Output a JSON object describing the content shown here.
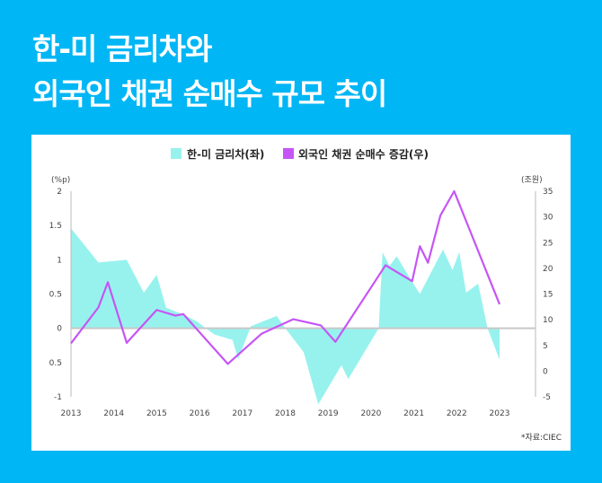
{
  "title": {
    "line1": "한-미 금리차와",
    "line2": "외국인 채권 순매수 규모 추이"
  },
  "source": "*자료:CIEC",
  "colors": {
    "background": "#00b6f5",
    "area": "#97f2ee",
    "line": "#c655f5",
    "zero_line": "#c8c8c8"
  },
  "chart_data": {
    "type": "area+line",
    "legend_position": "top-center",
    "grid": false,
    "xlim": [
      2013,
      2023
    ],
    "x_ticks": [
      "2013",
      "2014",
      "2015",
      "2016",
      "2017",
      "2018",
      "2019",
      "2020",
      "2021",
      "2022",
      "2023"
    ],
    "left_axis": {
      "unit": "(%p)",
      "ylim": [
        -1,
        2
      ],
      "ticks": [
        "2",
        "1.5",
        "1",
        "0.5",
        "0",
        "0.5",
        "-1"
      ],
      "tick_values": [
        2,
        1.5,
        1,
        0.5,
        0,
        -0.5,
        -1
      ]
    },
    "right_axis": {
      "unit": "(조원)",
      "ylim": [
        -5,
        35
      ],
      "ticks": [
        "35",
        "30",
        "25",
        "20",
        "15",
        "10",
        "5",
        "0",
        "-5"
      ],
      "tick_values": [
        35,
        30,
        25,
        20,
        15,
        10,
        5,
        0,
        -5
      ]
    },
    "series": [
      {
        "name": "한-미 금리차(좌)",
        "type": "area",
        "axis": "left",
        "x": [
          2013,
          2013.64,
          2014.3,
          2014.7,
          2015.0,
          2015.22,
          2015.62,
          2015.94,
          2016.34,
          2016.77,
          2016.9,
          2017.2,
          2017.8,
          2018.0,
          2018.43,
          2018.77,
          2019.31,
          2019.47,
          2020.18,
          2020.27,
          2020.43,
          2020.6,
          2020.9,
          2021.14,
          2021.68,
          2021.9,
          2022.06,
          2022.22,
          2022.5,
          2022.72,
          2023.0
        ],
        "y": [
          1.46,
          0.96,
          1.0,
          0.52,
          0.78,
          0.3,
          0.2,
          0.1,
          -0.09,
          -0.17,
          -0.45,
          0.03,
          0.18,
          0.0,
          -0.35,
          -1.11,
          -0.54,
          -0.74,
          0.0,
          1.11,
          0.91,
          1.05,
          0.74,
          0.5,
          1.15,
          0.85,
          1.11,
          0.52,
          0.65,
          0.0,
          -0.46
        ]
      },
      {
        "name": "외국인 채권 순매수 증감(우)",
        "type": "line",
        "axis": "right",
        "x": [
          2013,
          2013.64,
          2013.86,
          2014.3,
          2015.0,
          2015.44,
          2015.62,
          2016.66,
          2017.45,
          2018.19,
          2018.83,
          2019.17,
          2020.34,
          2020.96,
          2021.14,
          2021.33,
          2021.62,
          2021.94,
          2023.0
        ],
        "y": [
          5.4,
          12.4,
          17.3,
          5.5,
          11.9,
          10.8,
          11.1,
          1.4,
          7.3,
          10.1,
          8.9,
          5.7,
          20.6,
          17.5,
          24.3,
          21.1,
          30.3,
          35,
          13
        ]
      }
    ]
  }
}
